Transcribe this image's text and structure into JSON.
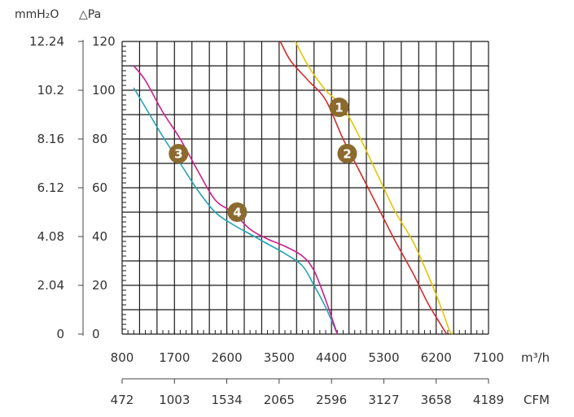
{
  "chart_data": {
    "type": "line",
    "left_unit_label": "mmH₂O",
    "right_unit_label": "△Pa",
    "x_unit_label": "m³/h",
    "x2_unit_label": "CFM",
    "ylim": [
      0,
      120
    ],
    "xlim": [
      800,
      7100
    ],
    "x_ticks": [
      "800",
      "1700",
      "2600",
      "3500",
      "4400",
      "5300",
      "6200",
      "7100"
    ],
    "x2_ticks": [
      "472",
      "1003",
      "1534",
      "2065",
      "2596",
      "3127",
      "3658",
      "4189"
    ],
    "y_ticks_pa": [
      "0",
      "20",
      "40",
      "60",
      "80",
      "100",
      "120"
    ],
    "y_ticks_mm": [
      "0",
      "2.04",
      "4.08",
      "6.12",
      "8.16",
      "10.2",
      "12.24"
    ],
    "grid": true,
    "series": [
      {
        "name": "1",
        "color": "#e8c400",
        "x": [
          3780,
          4000,
          4300,
          4600,
          4900,
          5200,
          5500,
          5800,
          6100,
          6300,
          6420,
          6480
        ],
        "y": [
          120,
          110,
          100,
          93,
          80,
          65,
          50,
          38,
          22,
          10,
          2,
          0
        ]
      },
      {
        "name": "2",
        "color": "#d42a2a",
        "x": [
          3520,
          3700,
          4000,
          4300,
          4600,
          4900,
          5200,
          5500,
          5800,
          6050,
          6250,
          6380
        ],
        "y": [
          120,
          112,
          104,
          96,
          80,
          66,
          52,
          38,
          25,
          13,
          5,
          0
        ]
      },
      {
        "name": "3",
        "color": "#22a4b4",
        "x": [
          1000,
          1200,
          1500,
          1800,
          2100,
          2400,
          2700,
          3000,
          3300,
          3600,
          3900,
          4100,
          4300,
          4500
        ],
        "y": [
          101,
          93,
          81,
          70,
          59,
          50,
          45,
          41,
          37,
          33,
          28,
          20,
          11,
          0
        ]
      },
      {
        "name": "4",
        "color": "#cc1e8c",
        "x": [
          1000,
          1200,
          1500,
          1800,
          2100,
          2400,
          2700,
          3000,
          3300,
          3600,
          3900,
          4100,
          4300,
          4500
        ],
        "y": [
          110,
          104,
          91,
          80,
          67,
          55,
          50,
          43,
          39,
          36,
          32,
          26,
          14,
          0
        ]
      }
    ],
    "markers": [
      {
        "label": "1",
        "x": 4530,
        "y": 93
      },
      {
        "label": "2",
        "x": 4670,
        "y": 74
      },
      {
        "label": "3",
        "x": 1770,
        "y": 74
      },
      {
        "label": "4",
        "x": 2780,
        "y": 50
      }
    ],
    "marker_color": "#8b6a2f"
  }
}
